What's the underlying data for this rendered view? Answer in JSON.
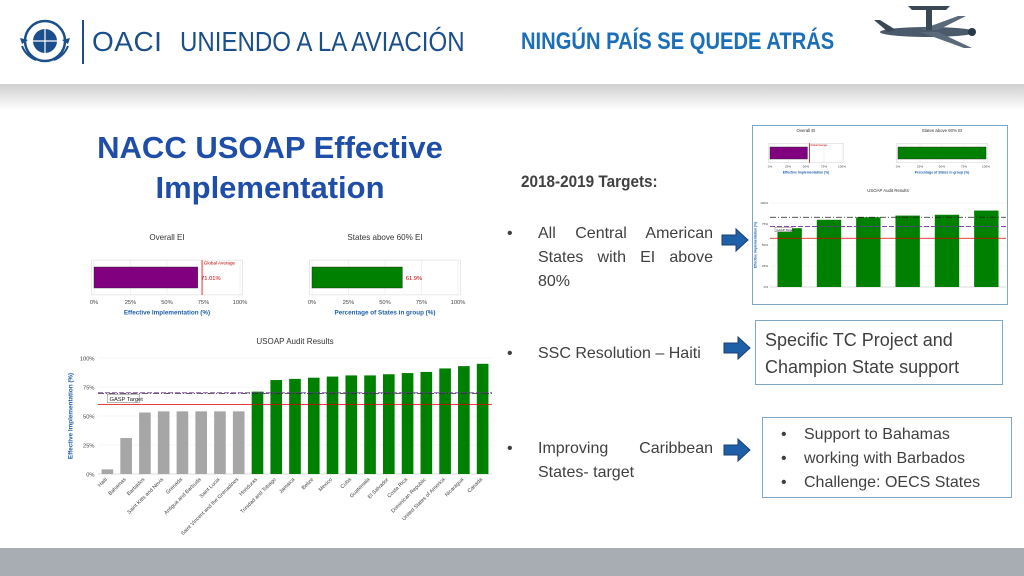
{
  "header": {
    "emblem_text": "OACI · ICAO · ИКАО · 国际民航组织 · ايكاو",
    "org_name": "OACI",
    "slogan": "UNIENDO A LA AVIACIÓN",
    "tagline": "NINGÚN PAÍS SE QUEDE ATRÁS",
    "plane_icon": "airplane-icon"
  },
  "slide": {
    "title": "NACC USOAP Effective Implementation"
  },
  "targets": {
    "heading": "2018-2019 Targets:",
    "items": [
      "All Central American States with EI above 80%",
      "SSC Resolution – Haiti",
      "Improving Caribbean States- target"
    ]
  },
  "callouts": {
    "tc_support": "Specific TC Project and Champion State support",
    "caribbean_items": [
      "Support to Bahamas",
      "working  with Barbados",
      "Challenge: OECS States"
    ]
  },
  "colors": {
    "title_blue": "#1f4ea8",
    "brand_blue": "#1b4f8c",
    "purple": "#800080",
    "green": "#008000",
    "gray_bar": "#a6a6a6",
    "footer_gray": "#a8adb3",
    "arrow_blue": "#1f5fa8"
  },
  "chart_data": [
    {
      "type": "bar",
      "orientation": "horizontal",
      "title": "Overall EI",
      "xlabel": "Effective Implementation (%)",
      "ticks": [
        "0%",
        "25%",
        "50%",
        "75%",
        "100%"
      ],
      "xlim": [
        0,
        100
      ],
      "values": [
        71.01
      ],
      "value_label": "71.01%",
      "reference_line": {
        "label": "Global Average",
        "value": 74
      },
      "color": "#800080"
    },
    {
      "type": "bar",
      "orientation": "horizontal",
      "title": "States above 60% EI",
      "xlabel": "Percentage of States in group (%)",
      "ticks": [
        "0%",
        "25%",
        "50%",
        "75%",
        "100%"
      ],
      "xlim": [
        0,
        100
      ],
      "values": [
        61.9
      ],
      "value_label": "61.9%",
      "color": "#008000"
    },
    {
      "type": "bar",
      "title": "USOAP Audit Results",
      "ylabel": "Effective Implementation (%)",
      "ylim": [
        0,
        100
      ],
      "y_ticks": [
        "0%",
        "25%",
        "50%",
        "75%",
        "100%"
      ],
      "target_line": {
        "label": "GASP Target",
        "value": 70
      },
      "reference_lines": [
        69.5,
        60
      ],
      "categories": [
        "Haiti",
        "Bahamas",
        "Barbados",
        "Saint Kitts and Nevis",
        "Grenada",
        "Antigua and Barbuda",
        "Saint Lucia",
        "Saint Vincent and the Grenadines",
        "Honduras",
        "Trinidad and Tobago",
        "Jamaica",
        "Belize",
        "Mexico",
        "Cuba",
        "Guatemala",
        "El Salvador",
        "Costa Rica",
        "Dominican Republic",
        "United States of America",
        "Nicaragua",
        "Canada"
      ],
      "values": [
        4,
        31,
        53,
        54,
        54,
        54,
        54,
        54,
        71,
        81,
        82,
        83,
        84,
        85,
        85,
        86,
        87,
        88,
        91,
        93,
        95
      ],
      "colors": [
        "#a6a6a6",
        "#a6a6a6",
        "#a6a6a6",
        "#a6a6a6",
        "#a6a6a6",
        "#a6a6a6",
        "#a6a6a6",
        "#a6a6a6",
        "#008000",
        "#008000",
        "#008000",
        "#008000",
        "#008000",
        "#008000",
        "#008000",
        "#008000",
        "#008000",
        "#008000",
        "#008000",
        "#008000",
        "#008000"
      ]
    },
    {
      "type": "bar",
      "orientation": "horizontal",
      "title": "Overall EI",
      "xlabel": "Effective Implementation (%)",
      "ticks": [
        "0%",
        "25%",
        "50%",
        "75%",
        "100%"
      ],
      "xlim": [
        0,
        100
      ],
      "values": [
        52
      ],
      "reference_line": {
        "label": "Global Average",
        "value": 55
      },
      "color": "#800080"
    },
    {
      "type": "bar",
      "orientation": "horizontal",
      "title": "States above 60% EI",
      "xlabel": "Percentage of States in group (%)",
      "ticks": [
        "0%",
        "25%",
        "50%",
        "75%",
        "100%"
      ],
      "xlim": [
        0,
        100
      ],
      "values": [
        100
      ],
      "color": "#008000"
    },
    {
      "type": "bar",
      "title": "USOAP Audit Results",
      "ylabel": "Effective Implementation (%)",
      "ylim": [
        0,
        100
      ],
      "y_ticks": [
        "0%",
        "25%",
        "50%",
        "75%",
        "100%"
      ],
      "target_line": {
        "label": "GASP Target",
        "value": 72
      },
      "reference_lines": [
        83,
        58
      ],
      "categories": [
        "Honduras",
        "Belize",
        "Guatemala",
        "El Salvador",
        "Costa Rica",
        "Nicaragua"
      ],
      "values": [
        70,
        80,
        83,
        85,
        86,
        91
      ],
      "color": "#008000"
    }
  ]
}
